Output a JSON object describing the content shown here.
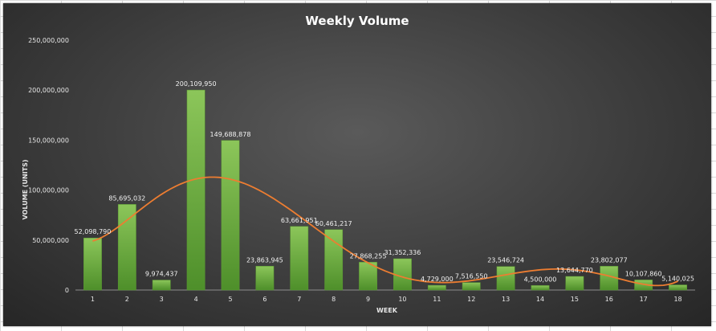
{
  "chart_data": {
    "type": "bar",
    "title": "Weekly Volume",
    "xlabel": "WEEK",
    "ylabel": "VOLUME (UNITS)",
    "ylim": [
      0,
      250000000
    ],
    "yticks": [
      0,
      50000000,
      100000000,
      150000000,
      200000000,
      250000000
    ],
    "ytick_labels": [
      "0",
      "50,000,000",
      "100,000,000",
      "150,000,000",
      "200,000,000",
      "250,000,000"
    ],
    "categories": [
      "1",
      "2",
      "3",
      "4",
      "5",
      "6",
      "7",
      "8",
      "9",
      "10",
      "11",
      "12",
      "13",
      "14",
      "15",
      "16",
      "17",
      "18"
    ],
    "values": [
      52098790,
      85695032,
      9974437,
      200109950,
      149688878,
      23863945,
      63661951,
      60461217,
      27868255,
      31352336,
      4729000,
      7516550,
      23546724,
      4500000,
      13644770,
      23802077,
      10107860,
      5140025
    ],
    "data_labels": [
      "52,098,790",
      "85,695,032",
      "9,974,437",
      "200,109,950",
      "149,688,878",
      "23,863,945",
      "63,661,951",
      "60,461,217",
      "27,868,255",
      "31,352,336",
      "4,729,000",
      "7,516,550",
      "23,546,724",
      "4,500,000",
      "13,644,770",
      "23,802,077",
      "10,107,860",
      "5,140,025"
    ],
    "trendline": {
      "type": "polynomial",
      "color": "#ed7d31"
    },
    "bar_color": "#70ad47",
    "grid": false,
    "legend": "none"
  }
}
